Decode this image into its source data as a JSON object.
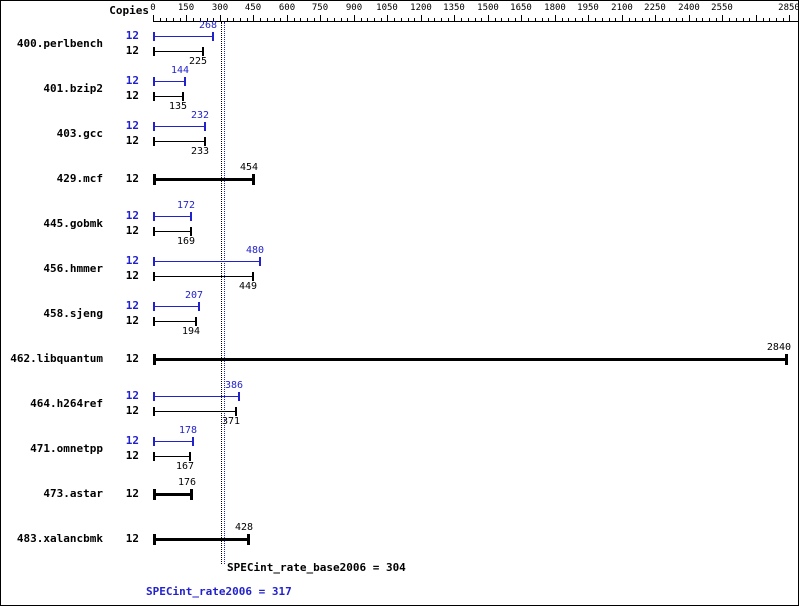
{
  "header": {
    "copies_label": "Copies"
  },
  "chart_data": {
    "type": "bar",
    "orientation": "horizontal",
    "xlim": [
      0,
      2880
    ],
    "major_tick_step": 150,
    "minor_tick_step": 30,
    "ticks_end": 2850,
    "x_tick_labels": [
      "0",
      "150",
      "300",
      "450",
      "600",
      "750",
      "900",
      "1050",
      "1200",
      "1350",
      "1500",
      "1650",
      "1800",
      "1950",
      "2100",
      "2250",
      "2400",
      "2550",
      "",
      "2850"
    ],
    "peak_color": "#2222cc",
    "base_color": "#000000",
    "benchmarks": [
      {
        "name": "400.perlbench",
        "copies": "12",
        "peak": 268,
        "base": 225
      },
      {
        "name": "401.bzip2",
        "copies": "12",
        "peak": 144,
        "base": 135
      },
      {
        "name": "403.gcc",
        "copies": "12",
        "peak": 232,
        "base": 233
      },
      {
        "name": "429.mcf",
        "copies": "12",
        "single": 454
      },
      {
        "name": "445.gobmk",
        "copies": "12",
        "peak": 172,
        "base": 169
      },
      {
        "name": "456.hmmer",
        "copies": "12",
        "peak": 480,
        "base": 449
      },
      {
        "name": "458.sjeng",
        "copies": "12",
        "peak": 207,
        "base": 194
      },
      {
        "name": "462.libquantum",
        "copies": "12",
        "single": 2840
      },
      {
        "name": "464.h264ref",
        "copies": "12",
        "peak": 386,
        "base": 371
      },
      {
        "name": "471.omnetpp",
        "copies": "12",
        "peak": 178,
        "base": 167
      },
      {
        "name": "473.astar",
        "copies": "12",
        "single": 176
      },
      {
        "name": "483.xalancbmk",
        "copies": "12",
        "single": 428
      }
    ],
    "summary": {
      "base_label": "SPECint_rate_base2006 = 304",
      "base_value": 304,
      "peak_label": "SPECint_rate2006 = 317",
      "peak_value": 317
    }
  }
}
